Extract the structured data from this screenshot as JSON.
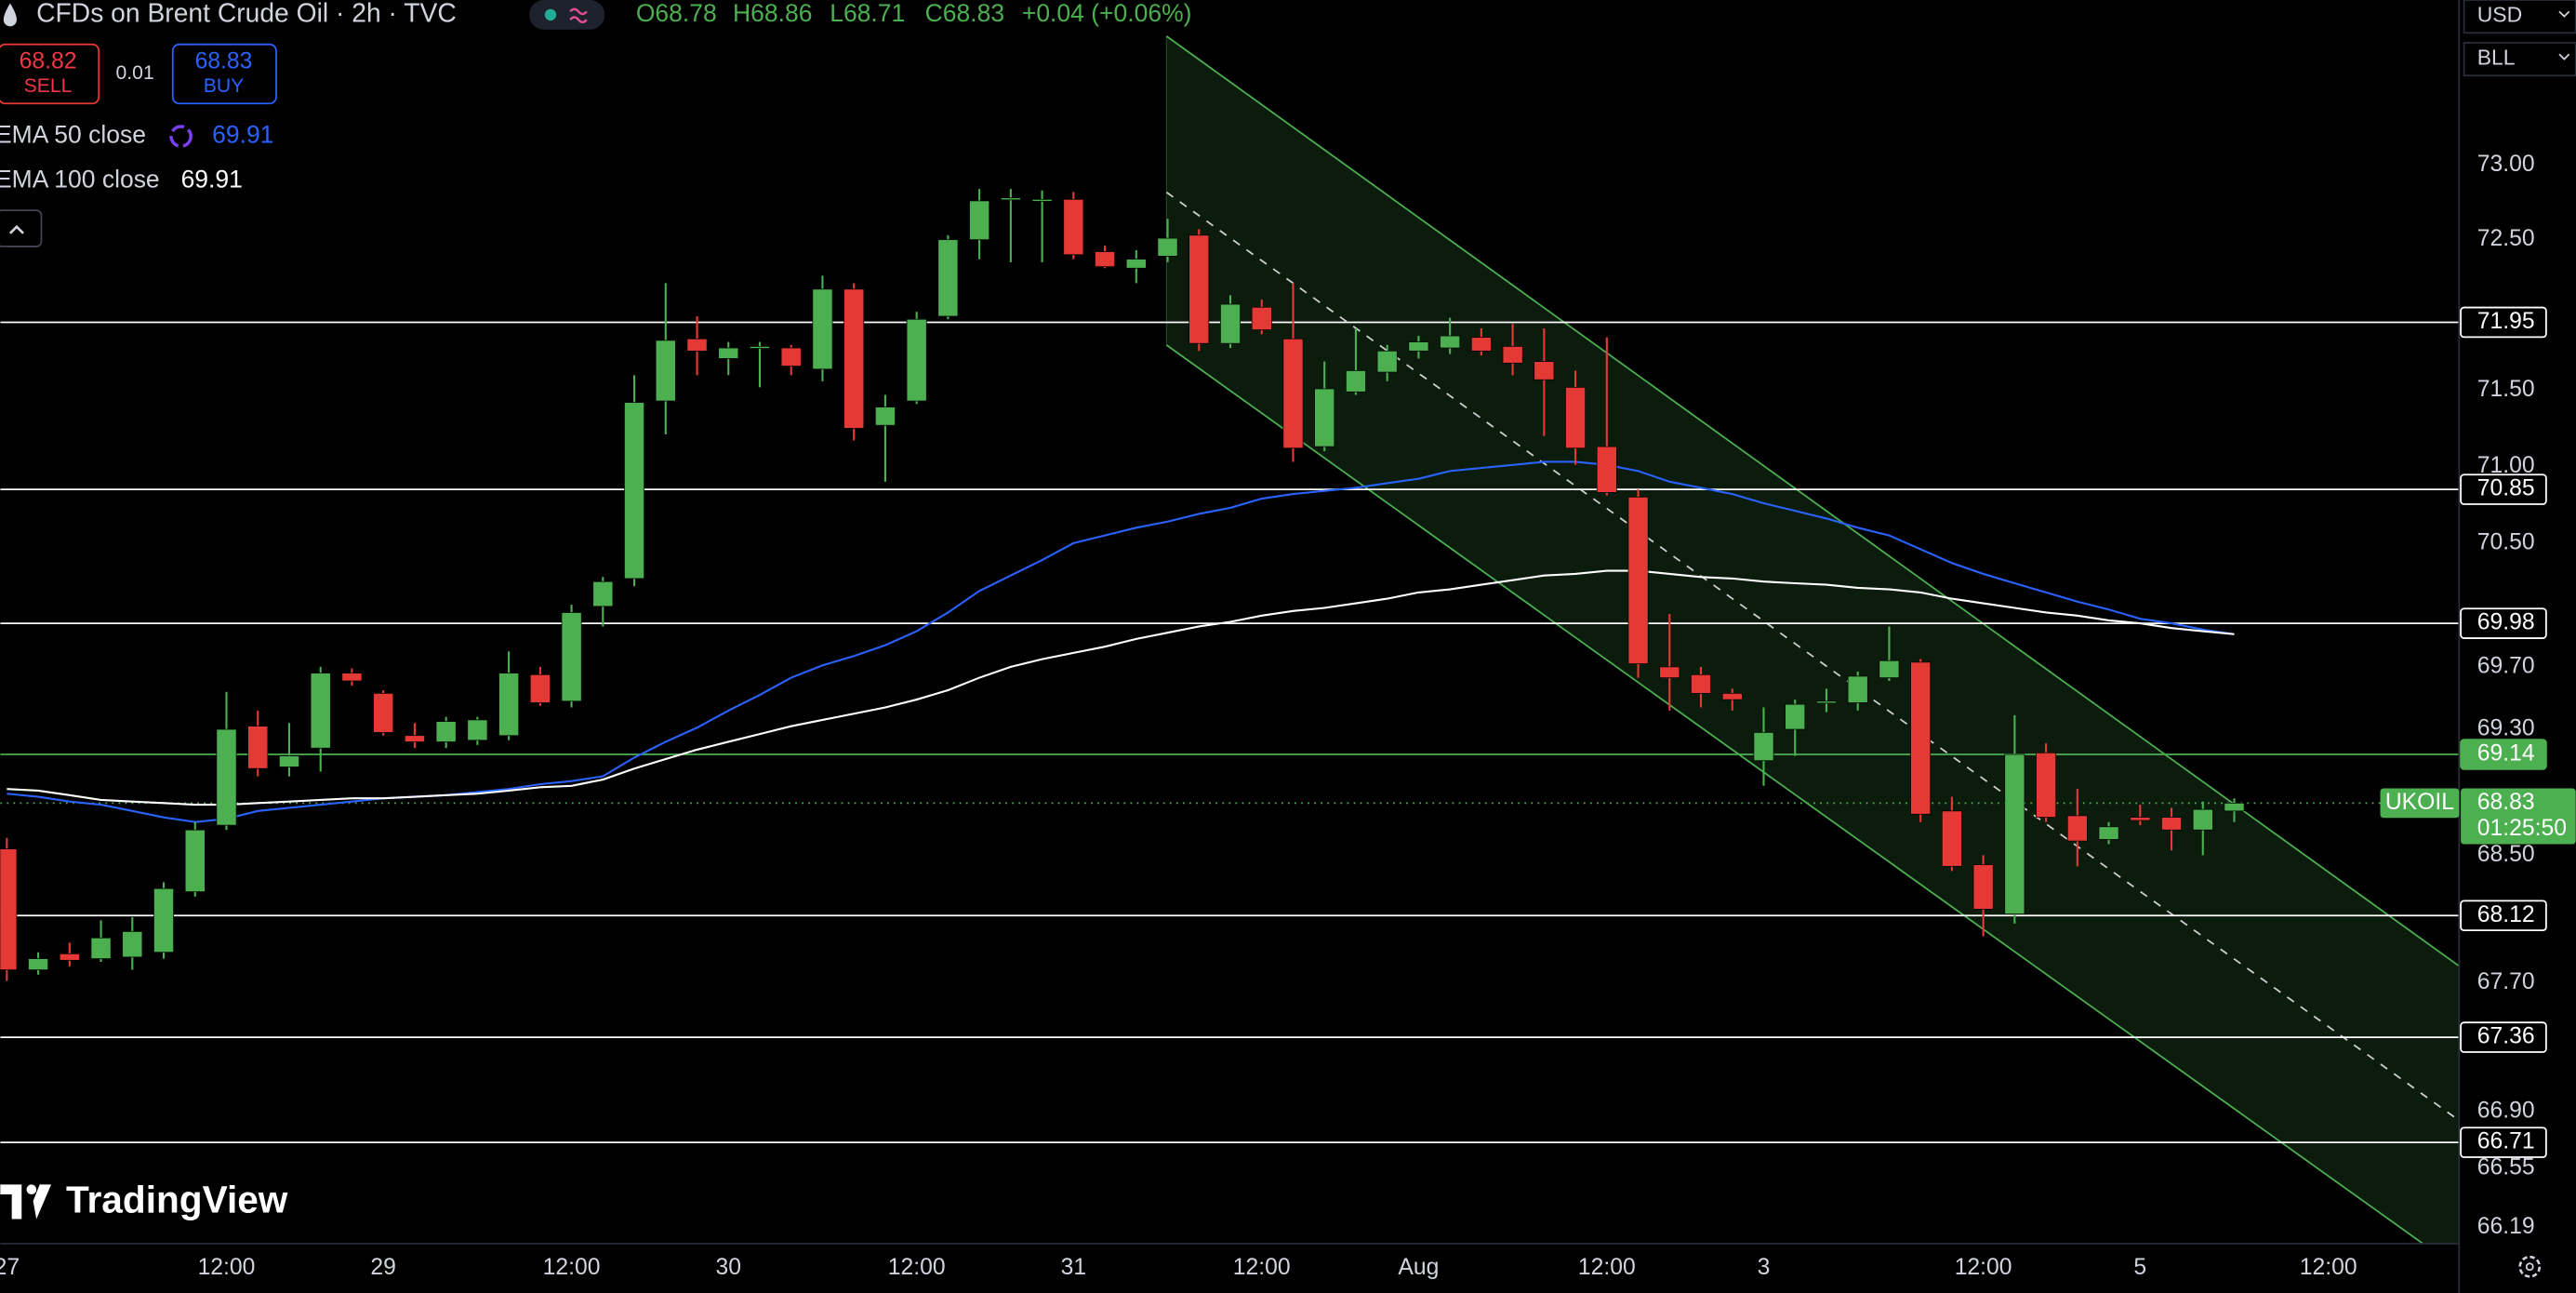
{
  "header": {
    "title": "CFDs on Brent Crude Oil · 2h · TVC",
    "ohlc": [
      "O68.78",
      "H68.86",
      "L68.71",
      "C68.83"
    ],
    "change": "+0.04 (+0.06%)",
    "sell": {
      "price": 68.82,
      "label": "SELL"
    },
    "spread": 0.01,
    "buy": {
      "price": 68.83,
      "label": "BUY"
    }
  },
  "toolbar": {
    "currency": "USD",
    "unit": "BLL"
  },
  "watermark": "TradingView",
  "chart_data": {
    "type": "candlestick",
    "log_scale": true,
    "grid": false,
    "up_color": "#4caf50",
    "down_color": "#e53935",
    "categories": [
      "27",
      null,
      null,
      null,
      null,
      null,
      null,
      "12:00",
      null,
      null,
      null,
      null,
      "29",
      null,
      null,
      null,
      null,
      null,
      "12:00",
      null,
      null,
      null,
      null,
      "30",
      null,
      null,
      null,
      null,
      null,
      "12:00",
      null,
      null,
      null,
      null,
      "31",
      null,
      null,
      null,
      null,
      null,
      "12:00",
      null,
      null,
      null,
      null,
      "Aug",
      null,
      null,
      null,
      null,
      null,
      "12:00",
      null,
      null,
      null,
      null,
      "3",
      null,
      null,
      null,
      null,
      null,
      null,
      "12:00",
      null,
      null,
      null,
      null,
      "5",
      null,
      null,
      null,
      null,
      null,
      "12:00"
    ],
    "open": [
      68.54,
      67.78,
      67.88,
      67.85,
      67.86,
      67.89,
      68.27,
      68.69,
      69.32,
      69.06,
      69.18,
      69.66,
      69.53,
      69.26,
      69.22,
      69.23,
      69.26,
      69.65,
      69.48,
      70.09,
      70.27,
      71.43,
      71.84,
      71.71,
      71.79,
      71.78,
      71.64,
      72.17,
      71.27,
      71.43,
      71.99,
      72.5,
      72.78,
      72.77,
      72.77,
      72.42,
      72.31,
      72.39,
      72.53,
      71.81,
      72.05,
      71.84,
      71.13,
      71.49,
      71.62,
      71.76,
      71.78,
      71.85,
      71.79,
      71.69,
      71.52,
      71.13,
      70.8,
      69.7,
      69.65,
      69.53,
      69.1,
      69.3,
      69.48,
      69.47,
      69.63,
      69.73,
      68.78,
      68.44,
      68.13,
      69.15,
      68.75,
      68.6,
      68.74,
      68.74,
      68.66,
      68.78,
      null,
      null,
      null
    ],
    "high": [
      68.61,
      67.89,
      67.95,
      68.09,
      68.11,
      68.33,
      68.71,
      69.54,
      69.42,
      69.34,
      69.7,
      69.69,
      69.55,
      69.34,
      69.38,
      69.38,
      69.8,
      69.7,
      70.1,
      70.28,
      71.6,
      72.21,
      71.99,
      71.82,
      71.82,
      71.8,
      72.26,
      72.21,
      71.47,
      72.02,
      72.53,
      72.84,
      72.84,
      72.83,
      72.82,
      72.46,
      72.43,
      72.64,
      72.57,
      72.13,
      72.1,
      72.21,
      71.69,
      71.91,
      71.8,
      71.86,
      71.98,
      71.91,
      71.94,
      71.91,
      71.63,
      71.85,
      70.85,
      70.04,
      69.7,
      69.56,
      69.44,
      69.49,
      69.56,
      69.67,
      69.96,
      69.75,
      68.87,
      68.5,
      69.39,
      69.21,
      68.92,
      68.71,
      68.82,
      68.8,
      68.84,
      68.86,
      null,
      null,
      null
    ],
    "low": [
      67.71,
      67.75,
      67.8,
      67.83,
      67.78,
      67.85,
      68.24,
      68.66,
      69.0,
      69.0,
      69.03,
      69.58,
      69.26,
      69.18,
      69.18,
      69.2,
      69.23,
      69.45,
      69.44,
      69.96,
      70.22,
      71.21,
      71.6,
      71.6,
      71.52,
      71.6,
      71.56,
      71.17,
      70.9,
      71.41,
      71.97,
      72.37,
      72.35,
      72.35,
      72.37,
      72.31,
      72.21,
      72.35,
      71.76,
      71.78,
      71.87,
      71.03,
      71.1,
      71.47,
      71.56,
      71.71,
      71.74,
      71.73,
      71.6,
      71.2,
      71.01,
      70.81,
      69.63,
      69.42,
      69.44,
      69.42,
      68.94,
      69.13,
      69.41,
      69.42,
      69.61,
      68.71,
      68.4,
      67.99,
      68.07,
      68.71,
      68.43,
      68.57,
      68.69,
      68.53,
      68.5,
      68.71,
      null,
      null,
      null
    ],
    "close": [
      67.78,
      67.85,
      67.84,
      67.98,
      68.02,
      68.29,
      68.66,
      69.3,
      69.05,
      69.13,
      69.66,
      69.61,
      69.28,
      69.22,
      69.35,
      69.36,
      69.66,
      69.47,
      70.05,
      70.25,
      71.42,
      71.83,
      71.76,
      71.78,
      71.79,
      71.66,
      72.17,
      71.25,
      71.39,
      71.97,
      72.5,
      72.76,
      72.78,
      72.77,
      72.4,
      72.32,
      72.37,
      72.51,
      71.81,
      72.07,
      71.9,
      71.12,
      71.51,
      71.63,
      71.76,
      71.82,
      71.86,
      71.76,
      71.68,
      71.57,
      71.12,
      70.83,
      69.72,
      69.63,
      69.53,
      69.49,
      69.28,
      69.46,
      69.48,
      69.64,
      69.74,
      68.76,
      68.43,
      68.16,
      69.14,
      68.74,
      68.59,
      68.68,
      68.72,
      68.66,
      68.79,
      68.83,
      null,
      null,
      null
    ],
    "indicators": [
      {
        "name": "EMA 50 close",
        "color": "#2962ff",
        "last": 69.91,
        "values": [
          68.89,
          68.87,
          68.84,
          68.82,
          68.78,
          68.74,
          68.71,
          68.73,
          68.78,
          68.8,
          68.82,
          68.84,
          68.86,
          68.87,
          68.88,
          68.9,
          68.92,
          68.95,
          68.97,
          69.0,
          69.12,
          69.22,
          69.31,
          69.42,
          69.52,
          69.63,
          69.71,
          69.77,
          69.84,
          69.93,
          70.05,
          70.19,
          70.29,
          70.39,
          70.5,
          70.55,
          70.6,
          70.64,
          70.69,
          70.73,
          70.79,
          70.82,
          70.84,
          70.86,
          70.89,
          70.92,
          70.97,
          70.99,
          71.01,
          71.03,
          71.03,
          71.01,
          70.97,
          70.9,
          70.86,
          70.82,
          70.76,
          70.71,
          70.66,
          70.6,
          70.55,
          70.46,
          70.37,
          70.3,
          70.24,
          70.18,
          70.12,
          70.07,
          70.01,
          69.98,
          69.94,
          69.91,
          null,
          null,
          null
        ]
      },
      {
        "name": "EMA 100 close",
        "color": "#ffffff",
        "last": 69.91,
        "values": [
          68.92,
          68.91,
          68.88,
          68.85,
          68.84,
          68.83,
          68.82,
          68.82,
          68.83,
          68.84,
          68.85,
          68.86,
          68.86,
          68.87,
          68.88,
          68.89,
          68.91,
          68.93,
          68.94,
          68.98,
          69.05,
          69.11,
          69.17,
          69.22,
          69.27,
          69.32,
          69.36,
          69.4,
          69.44,
          69.49,
          69.55,
          69.63,
          69.7,
          69.75,
          69.79,
          69.83,
          69.88,
          69.92,
          69.96,
          69.99,
          70.03,
          70.06,
          70.08,
          70.11,
          70.14,
          70.18,
          70.2,
          70.23,
          70.26,
          70.29,
          70.3,
          70.32,
          70.32,
          70.3,
          70.28,
          70.27,
          70.25,
          70.24,
          70.23,
          70.21,
          70.2,
          70.18,
          70.14,
          70.11,
          70.08,
          70.05,
          70.03,
          70.0,
          69.98,
          69.95,
          69.93,
          69.91,
          null,
          null,
          null
        ]
      }
    ],
    "ylim": [
      66.09,
      74.12
    ],
    "yticks": [
      {
        "value": 73,
        "label": "73.00"
      },
      {
        "value": 72.5,
        "label": "72.50"
      },
      {
        "value": 71.5,
        "label": "71.50"
      },
      {
        "value": 71,
        "label": "71.00"
      },
      {
        "value": 70.5,
        "label": "70.50"
      },
      {
        "value": 69.7,
        "label": "69.70"
      },
      {
        "value": 69.3,
        "label": "69.30"
      },
      {
        "value": 68.5,
        "label": "68.50"
      },
      {
        "value": 67.7,
        "label": "67.70"
      },
      {
        "value": 66.9,
        "label": "66.90"
      },
      66.55,
      66.19
    ],
    "levels": [
      {
        "price": 71.95,
        "color": "#ffffff"
      },
      {
        "price": 70.85,
        "color": "#ffffff"
      },
      {
        "price": 69.98,
        "color": "#ffffff"
      },
      {
        "price": 69.14,
        "color": "#4caf50"
      },
      {
        "price": 68.12,
        "color": "#ffffff"
      },
      {
        "price": 67.36,
        "color": "#ffffff"
      },
      {
        "price": 66.71,
        "color": "#ffffff"
      }
    ],
    "last": {
      "symbol": "UKOIL",
      "price": 68.83,
      "countdown": "01:25:50",
      "color": "#4caf50"
    }
  }
}
